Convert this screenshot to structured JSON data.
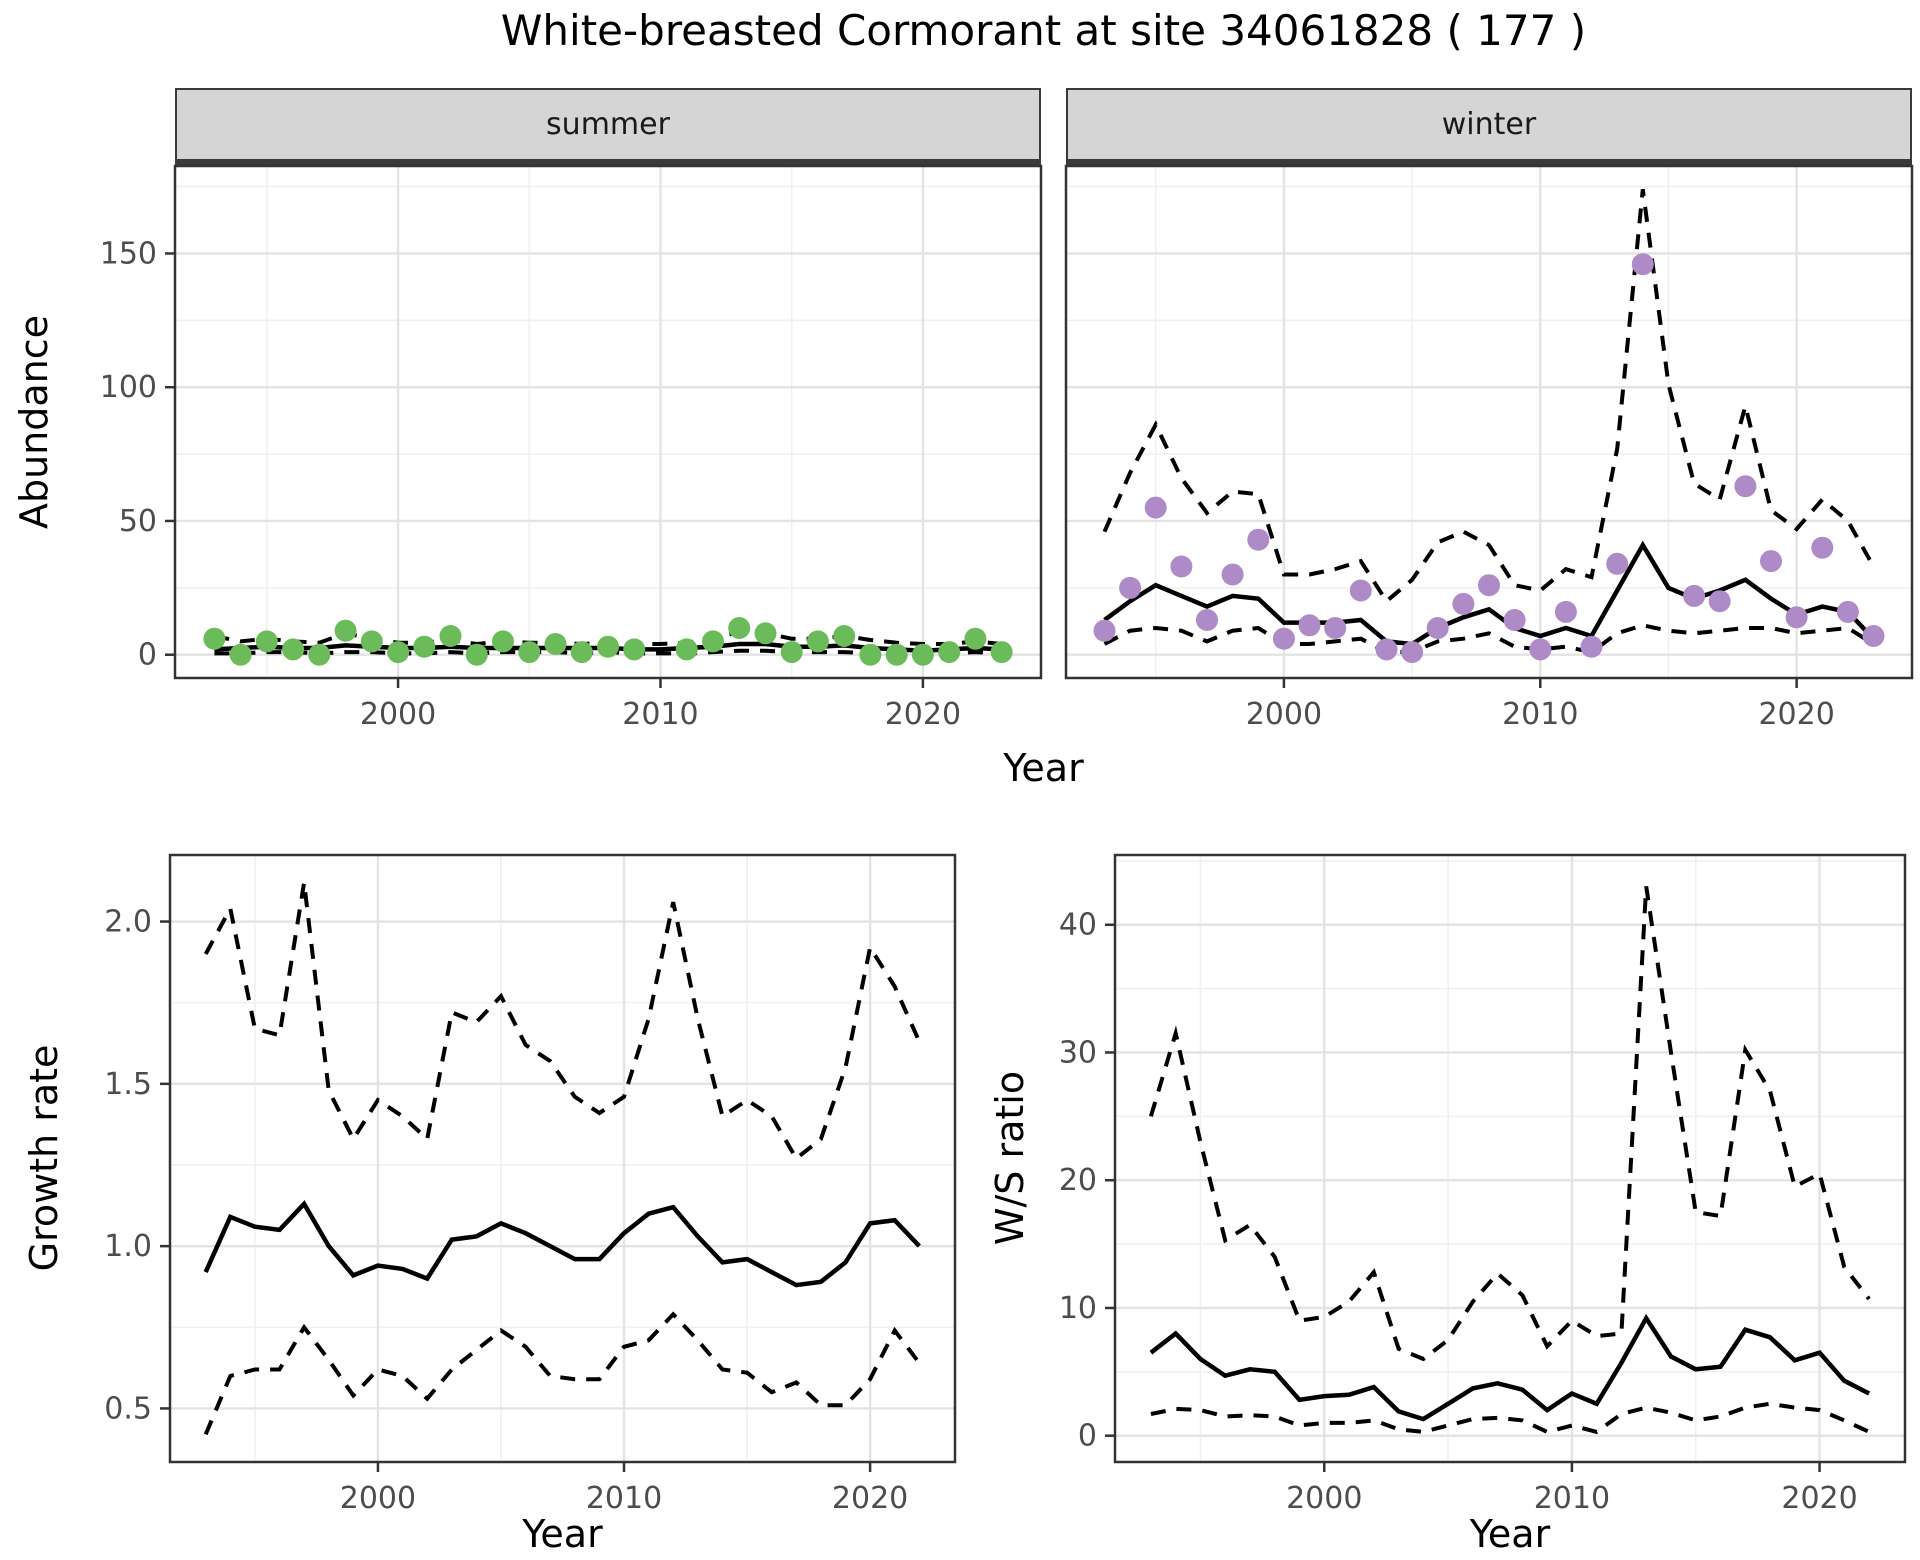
{
  "title": "White-breasted Cormorant at site 34061828 ( 177 )",
  "facets": {
    "summer": "summer",
    "winter": "winter"
  },
  "axis": {
    "x_title": "Year",
    "abundance_title": "Abundance",
    "growth_title": "Growth rate",
    "ws_title": "W/S ratio"
  },
  "colors": {
    "point_summer": "#6CBB5A",
    "point_winter": "#AE8BC6",
    "line": "#000000",
    "grid_major": "#E3E3E3",
    "grid_minor": "#F0F0F0",
    "panel_border": "#333333",
    "strip_bg": "#D5D5D5",
    "strip_border": "#3A3A3A",
    "tick_color": "#333333",
    "tick_label": "#4D4D4D",
    "title": "#000000"
  },
  "chart_data": [
    {
      "id": "abundance_summer",
      "type": "line+scatter",
      "facet": "summer",
      "ylabel": "Abundance",
      "xlabel": "Year",
      "xlim": [
        1991.5,
        2024.5
      ],
      "ylim": [
        -8.7,
        182.7
      ],
      "x_ticks": [
        2000,
        2010,
        2020
      ],
      "x_tick_labels": [
        "2000",
        "2010",
        "2020"
      ],
      "x_minor": [
        1995,
        2005,
        2015
      ],
      "y_ticks": [
        0,
        50,
        100,
        150
      ],
      "y_tick_labels": [
        "0",
        "50",
        "100",
        "150"
      ],
      "y_minor": [
        25,
        75,
        125,
        175
      ],
      "x": [
        1993,
        1994,
        1995,
        1996,
        1997,
        1998,
        1999,
        2000,
        2001,
        2002,
        2003,
        2004,
        2005,
        2006,
        2007,
        2008,
        2009,
        2010,
        2011,
        2012,
        2013,
        2014,
        2015,
        2016,
        2017,
        2018,
        2019,
        2020,
        2021,
        2022,
        2023
      ],
      "series": [
        {
          "name": "estimate",
          "style": "solid",
          "values": [
            2,
            2.5,
            3,
            2.5,
            2.5,
            3.5,
            3,
            2.5,
            2.5,
            3,
            2.5,
            2.5,
            2.5,
            2.5,
            2.5,
            2.5,
            2,
            2,
            2.5,
            3,
            4,
            4,
            3,
            3,
            3.5,
            2.5,
            2,
            1.5,
            2,
            2.5,
            2
          ]
        },
        {
          "name": "upper-ci",
          "style": "dashed",
          "values": [
            7,
            5,
            6,
            5,
            4.5,
            8,
            6,
            4.5,
            4.5,
            5.5,
            4,
            5,
            4.5,
            4.5,
            4,
            4.5,
            4,
            4,
            4.5,
            6,
            8.5,
            8,
            6,
            6,
            7,
            5.5,
            4.5,
            4,
            4,
            5,
            4
          ]
        },
        {
          "name": "lower-ci",
          "style": "dashed",
          "values": [
            0.5,
            0.5,
            1,
            1,
            0.5,
            1,
            1,
            0.5,
            0.5,
            1,
            0.5,
            1,
            1,
            1,
            0.5,
            1,
            0.5,
            0.5,
            0.5,
            1,
            1.5,
            1.5,
            1,
            1,
            1,
            0.5,
            0.5,
            0.5,
            0.5,
            1,
            0.5
          ]
        }
      ],
      "points": {
        "name": "observed-count",
        "color_key": "point_summer",
        "data": [
          [
            1993,
            6
          ],
          [
            1994,
            0
          ],
          [
            1995,
            5
          ],
          [
            1996,
            2
          ],
          [
            1997,
            0
          ],
          [
            1998,
            9
          ],
          [
            1999,
            5
          ],
          [
            2000,
            1
          ],
          [
            2001,
            3
          ],
          [
            2002,
            7
          ],
          [
            2003,
            0
          ],
          [
            2004,
            5
          ],
          [
            2005,
            1
          ],
          [
            2006,
            4
          ],
          [
            2007,
            1
          ],
          [
            2008,
            3
          ],
          [
            2009,
            2
          ],
          [
            2011,
            2
          ],
          [
            2012,
            5
          ],
          [
            2013,
            10
          ],
          [
            2014,
            8
          ],
          [
            2015,
            1
          ],
          [
            2016,
            5
          ],
          [
            2017,
            7
          ],
          [
            2018,
            0
          ],
          [
            2019,
            0
          ],
          [
            2020,
            0
          ],
          [
            2021,
            1
          ],
          [
            2022,
            6
          ],
          [
            2023,
            1
          ]
        ]
      }
    },
    {
      "id": "abundance_winter",
      "type": "line+scatter",
      "facet": "winter",
      "ylabel": "Abundance",
      "xlabel": "Year",
      "xlim": [
        1991.5,
        2024.5
      ],
      "ylim": [
        -8.7,
        182.7
      ],
      "x_ticks": [
        2000,
        2010,
        2020
      ],
      "x_tick_labels": [
        "2000",
        "2010",
        "2020"
      ],
      "x_minor": [
        1995,
        2005,
        2015
      ],
      "y_ticks": [
        0,
        50,
        100,
        150
      ],
      "y_tick_labels": [
        "0",
        "50",
        "100",
        "150"
      ],
      "y_minor": [
        25,
        75,
        125,
        175
      ],
      "x": [
        1993,
        1994,
        1995,
        1996,
        1997,
        1998,
        1999,
        2000,
        2001,
        2002,
        2003,
        2004,
        2005,
        2006,
        2007,
        2008,
        2009,
        2010,
        2011,
        2012,
        2013,
        2014,
        2015,
        2016,
        2017,
        2018,
        2019,
        2020,
        2021,
        2022,
        2023
      ],
      "series": [
        {
          "name": "estimate",
          "style": "solid",
          "values": [
            13,
            20,
            26,
            22,
            18,
            22,
            21,
            12,
            12,
            12,
            13,
            5,
            4,
            10,
            14,
            17,
            10,
            7,
            10,
            7,
            24,
            41,
            25,
            21,
            24,
            28,
            21,
            15,
            18,
            16,
            6
          ]
        },
        {
          "name": "upper-ci",
          "style": "dashed",
          "values": [
            46,
            68,
            86,
            66,
            53,
            61,
            60,
            30,
            30,
            32,
            35,
            20,
            28,
            42,
            46,
            41,
            26,
            24,
            32,
            29,
            77,
            174,
            101,
            64,
            58,
            93,
            54,
            47,
            58,
            50,
            33
          ]
        },
        {
          "name": "lower-ci",
          "style": "dashed",
          "values": [
            4,
            9,
            10,
            9,
            5,
            9,
            10,
            4,
            4,
            5,
            6,
            1,
            1,
            5,
            6,
            8,
            3,
            2,
            3,
            1,
            8,
            11,
            9,
            8,
            9,
            10,
            10,
            8,
            9,
            10,
            4
          ]
        }
      ],
      "points": {
        "name": "observed-count",
        "color_key": "point_winter",
        "data": [
          [
            1993,
            9
          ],
          [
            1994,
            25
          ],
          [
            1995,
            55
          ],
          [
            1996,
            33
          ],
          [
            1997,
            13
          ],
          [
            1998,
            30
          ],
          [
            1999,
            43
          ],
          [
            2000,
            6
          ],
          [
            2001,
            11
          ],
          [
            2002,
            10
          ],
          [
            2003,
            24
          ],
          [
            2004,
            2
          ],
          [
            2005,
            1
          ],
          [
            2006,
            10
          ],
          [
            2007,
            19
          ],
          [
            2008,
            26
          ],
          [
            2009,
            13
          ],
          [
            2010,
            2
          ],
          [
            2011,
            16
          ],
          [
            2012,
            3
          ],
          [
            2013,
            34
          ],
          [
            2014,
            146
          ],
          [
            2016,
            22
          ],
          [
            2017,
            20
          ],
          [
            2018,
            63
          ],
          [
            2019,
            35
          ],
          [
            2020,
            14
          ],
          [
            2021,
            40
          ],
          [
            2022,
            16
          ],
          [
            2023,
            7
          ]
        ]
      }
    },
    {
      "id": "growth_rate",
      "type": "line",
      "ylabel": "Growth rate",
      "xlabel": "Year",
      "xlim": [
        1991.55,
        2023.45
      ],
      "ylim": [
        0.335,
        2.205
      ],
      "x_ticks": [
        2000,
        2010,
        2020
      ],
      "x_tick_labels": [
        "2000",
        "2010",
        "2020"
      ],
      "x_minor": [
        1995,
        2005,
        2015
      ],
      "y_ticks": [
        0.5,
        1.0,
        1.5,
        2.0
      ],
      "y_tick_labels": [
        "0.5",
        "1.0",
        "1.5",
        "2.0"
      ],
      "y_minor": [
        0.75,
        1.25,
        1.75
      ],
      "x": [
        1993,
        1994,
        1995,
        1996,
        1997,
        1998,
        1999,
        2000,
        2001,
        2002,
        2003,
        2004,
        2005,
        2006,
        2007,
        2008,
        2009,
        2010,
        2011,
        2012,
        2013,
        2014,
        2015,
        2016,
        2017,
        2018,
        2019,
        2020,
        2021,
        2022
      ],
      "series": [
        {
          "name": "estimate",
          "style": "solid",
          "values": [
            0.92,
            1.09,
            1.06,
            1.05,
            1.13,
            1.0,
            0.91,
            0.94,
            0.93,
            0.9,
            1.02,
            1.03,
            1.07,
            1.04,
            1.0,
            0.96,
            0.96,
            1.04,
            1.1,
            1.12,
            1.03,
            0.95,
            0.96,
            0.92,
            0.88,
            0.89,
            0.95,
            1.07,
            1.08,
            1.0
          ]
        },
        {
          "name": "upper-ci",
          "style": "dashed",
          "values": [
            1.9,
            2.04,
            1.67,
            1.65,
            2.12,
            1.48,
            1.33,
            1.45,
            1.4,
            1.33,
            1.72,
            1.69,
            1.77,
            1.62,
            1.57,
            1.46,
            1.41,
            1.46,
            1.7,
            2.06,
            1.7,
            1.4,
            1.45,
            1.4,
            1.27,
            1.33,
            1.55,
            1.92,
            1.8,
            1.63
          ]
        },
        {
          "name": "lower-ci",
          "style": "dashed",
          "values": [
            0.42,
            0.6,
            0.62,
            0.62,
            0.75,
            0.65,
            0.54,
            0.62,
            0.6,
            0.53,
            0.62,
            0.68,
            0.74,
            0.69,
            0.6,
            0.59,
            0.59,
            0.69,
            0.71,
            0.79,
            0.71,
            0.62,
            0.61,
            0.55,
            0.58,
            0.51,
            0.51,
            0.59,
            0.74,
            0.64
          ]
        }
      ]
    },
    {
      "id": "ws_ratio",
      "type": "line",
      "ylabel": "W/S ratio",
      "xlabel": "Year",
      "xlim": [
        1991.55,
        2023.45
      ],
      "ylim": [
        -2.06,
        45.46
      ],
      "x_ticks": [
        2000,
        2010,
        2020
      ],
      "x_tick_labels": [
        "2000",
        "2010",
        "2020"
      ],
      "x_minor": [
        1995,
        2005,
        2015
      ],
      "y_ticks": [
        0,
        10,
        20,
        30,
        40
      ],
      "y_tick_labels": [
        "0",
        "10",
        "20",
        "30",
        "40"
      ],
      "y_minor": [
        5,
        15,
        25,
        35,
        45
      ],
      "x": [
        1993,
        1994,
        1995,
        1996,
        1997,
        1998,
        1999,
        2000,
        2001,
        2002,
        2003,
        2004,
        2005,
        2006,
        2007,
        2008,
        2009,
        2010,
        2011,
        2012,
        2013,
        2014,
        2015,
        2016,
        2017,
        2018,
        2019,
        2020,
        2021,
        2022
      ],
      "series": [
        {
          "name": "estimate",
          "style": "solid",
          "values": [
            6.5,
            8.0,
            6.0,
            4.7,
            5.2,
            5.0,
            2.8,
            3.1,
            3.2,
            3.8,
            1.9,
            1.3,
            2.5,
            3.7,
            4.1,
            3.6,
            2.0,
            3.3,
            2.5,
            5.7,
            9.2,
            6.2,
            5.2,
            5.4,
            8.3,
            7.7,
            5.9,
            6.5,
            4.3,
            3.3
          ]
        },
        {
          "name": "upper-ci",
          "style": "dashed",
          "values": [
            25,
            31.5,
            23,
            15.3,
            16.5,
            14,
            9,
            9.3,
            10.5,
            12.8,
            6.8,
            6.0,
            7.5,
            10.5,
            12.7,
            11,
            7,
            9,
            7.8,
            8,
            43,
            30,
            17.5,
            17.2,
            30.2,
            27,
            19.5,
            20.5,
            13.2,
            10.7
          ]
        },
        {
          "name": "lower-ci",
          "style": "dashed",
          "values": [
            1.7,
            2.1,
            2.0,
            1.5,
            1.6,
            1.5,
            0.8,
            1.0,
            1.0,
            1.2,
            0.5,
            0.3,
            0.8,
            1.3,
            1.4,
            1.2,
            0.3,
            0.8,
            0.3,
            1.7,
            2.2,
            1.8,
            1.2,
            1.5,
            2.2,
            2.5,
            2.2,
            2.0,
            1.2,
            0.3
          ]
        }
      ]
    }
  ]
}
